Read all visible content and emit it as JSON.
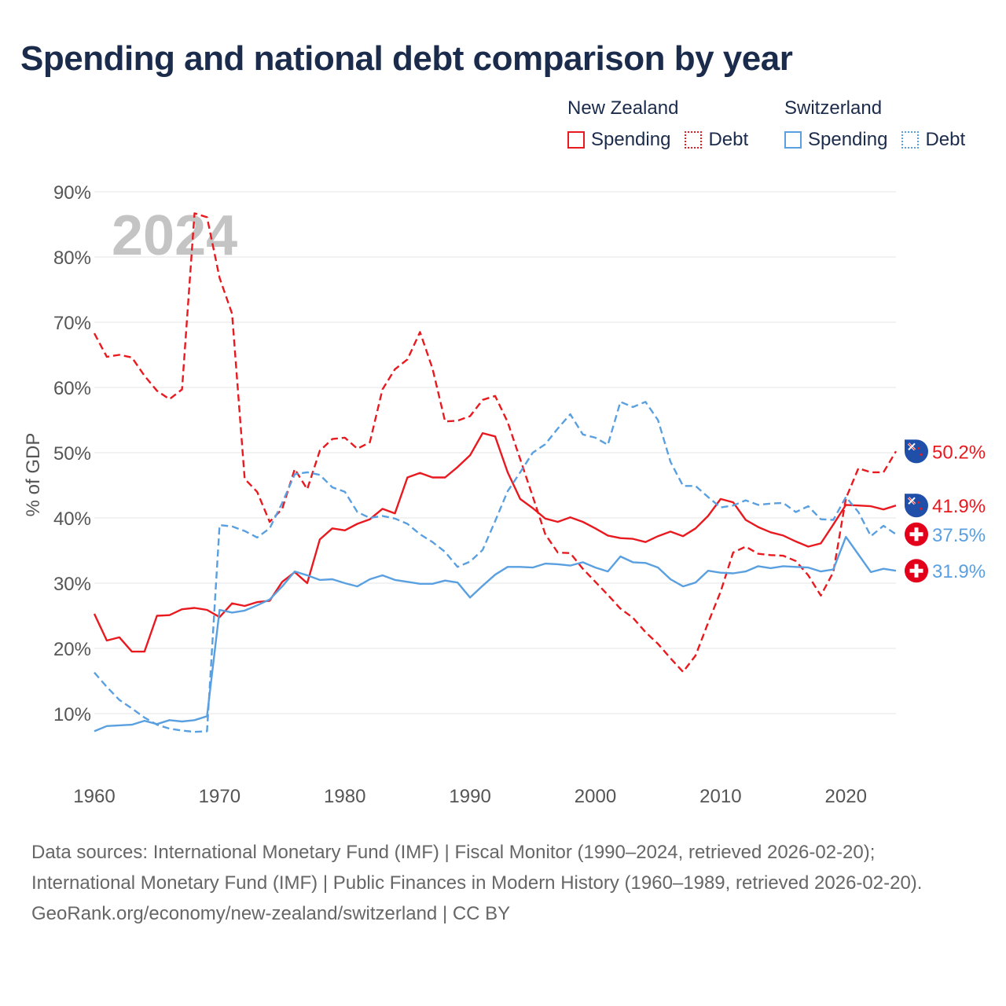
{
  "title": "Spending and national debt comparison by year",
  "legend": {
    "groups": [
      {
        "country": "New Zealand",
        "color": "#e8191f",
        "items": [
          {
            "label": "Spending",
            "style": "solid"
          },
          {
            "label": "Debt",
            "style": "dotted"
          }
        ]
      },
      {
        "country": "Switzerland",
        "color": "#5aa0e0",
        "items": [
          {
            "label": "Spending",
            "style": "solid"
          },
          {
            "label": "Debt",
            "style": "dotted"
          }
        ]
      }
    ]
  },
  "footer": {
    "sources": "Data sources: International Monetary Fund (IMF) | Fiscal Monitor (1990–2024, retrieved 2026-02-20); International Monetary Fund (IMF) | Public Finances in Modern History (1960–1989, retrieved 2026-02-20).",
    "credit": "GeoRank.org/economy/new-zealand/switzerland | CC BY"
  },
  "chart_data": {
    "type": "line",
    "year_watermark": "2024",
    "ylabel": "% of GDP",
    "xlim": [
      1960,
      2024
    ],
    "ylim": [
      0,
      90
    ],
    "x_ticks": [
      "1960",
      "1970",
      "1980",
      "1990",
      "2000",
      "2010",
      "2020"
    ],
    "y_ticks": [
      "10%",
      "20%",
      "30%",
      "40%",
      "50%",
      "60%",
      "70%",
      "80%",
      "90%"
    ],
    "x": [
      1960,
      1961,
      1962,
      1963,
      1964,
      1965,
      1966,
      1967,
      1968,
      1969,
      1970,
      1971,
      1972,
      1973,
      1974,
      1975,
      1976,
      1977,
      1978,
      1979,
      1980,
      1981,
      1982,
      1983,
      1984,
      1985,
      1986,
      1987,
      1988,
      1989,
      1990,
      1991,
      1992,
      1993,
      1994,
      1995,
      1996,
      1997,
      1998,
      1999,
      2000,
      2001,
      2002,
      2003,
      2004,
      2005,
      2006,
      2007,
      2008,
      2009,
      2010,
      2011,
      2012,
      2013,
      2014,
      2015,
      2016,
      2017,
      2018,
      2019,
      2020,
      2021,
      2022,
      2023,
      2024
    ],
    "series": [
      {
        "name": "New Zealand Spending",
        "color": "#e8191f",
        "dash": "none",
        "end_label": "41.9%",
        "flag": "nz",
        "values": [
          25.3,
          21.2,
          21.7,
          19.5,
          19.5,
          25.0,
          25.1,
          26.0,
          26.2,
          25.9,
          24.8,
          26.9,
          26.5,
          27.1,
          27.3,
          30.2,
          31.7,
          30.0,
          36.7,
          38.4,
          38.1,
          39.1,
          39.8,
          41.4,
          40.7,
          46.2,
          46.9,
          46.2,
          46.2,
          47.8,
          49.6,
          53.0,
          52.5,
          47.0,
          42.9,
          41.5,
          39.9,
          39.4,
          40.1,
          39.4,
          38.4,
          37.3,
          36.9,
          36.8,
          36.3,
          37.2,
          37.9,
          37.2,
          38.4,
          40.3,
          42.9,
          42.4,
          39.7,
          38.6,
          37.8,
          37.3,
          36.4,
          35.6,
          36.1,
          39.0,
          42.0,
          41.9,
          41.8,
          41.3,
          41.9
        ]
      },
      {
        "name": "New Zealand Debt",
        "color": "#e8191f",
        "dash": "9,5",
        "end_label": "50.2%",
        "flag": "nz",
        "values": [
          68.3,
          64.7,
          65.0,
          64.6,
          61.8,
          59.5,
          58.2,
          59.7,
          86.7,
          86.1,
          76.8,
          71.3,
          46.0,
          44.0,
          39.4,
          41.4,
          47.5,
          44.4,
          50.3,
          52.1,
          52.3,
          50.6,
          51.6,
          59.7,
          62.8,
          64.3,
          68.5,
          62.9,
          54.8,
          54.9,
          55.6,
          58.1,
          58.7,
          54.7,
          49.0,
          43.3,
          37.5,
          34.7,
          34.6,
          32.2,
          30.2,
          28.2,
          26.1,
          24.7,
          22.5,
          20.7,
          18.5,
          16.4,
          18.9,
          23.9,
          28.7,
          34.7,
          35.6,
          34.5,
          34.3,
          34.2,
          33.4,
          31.2,
          28.1,
          31.7,
          43.0,
          47.6,
          47.0,
          47.0,
          50.2
        ]
      },
      {
        "name": "Switzerland Spending",
        "color": "#5aa0e0",
        "dash": "none",
        "end_label": "31.9%",
        "flag": "ch",
        "values": [
          7.3,
          8.1,
          8.2,
          8.3,
          8.9,
          8.4,
          9.0,
          8.8,
          9.0,
          9.6,
          25.9,
          25.5,
          25.8,
          26.6,
          27.5,
          29.5,
          31.8,
          31.2,
          30.5,
          30.6,
          30.0,
          29.5,
          30.6,
          31.2,
          30.5,
          30.2,
          29.9,
          29.9,
          30.4,
          30.1,
          27.8,
          29.6,
          31.3,
          32.5,
          32.5,
          32.4,
          33.0,
          32.9,
          32.7,
          33.2,
          32.4,
          31.8,
          34.1,
          33.2,
          33.1,
          32.4,
          30.6,
          29.5,
          30.1,
          31.9,
          31.6,
          31.5,
          31.8,
          32.6,
          32.3,
          32.6,
          32.5,
          32.4,
          31.8,
          32.1,
          37.1,
          34.4,
          31.7,
          32.2,
          31.9
        ]
      },
      {
        "name": "Switzerland Debt",
        "color": "#5aa0e0",
        "dash": "9,5",
        "end_label": "37.5%",
        "flag": "ch",
        "values": [
          16.3,
          14.1,
          12.1,
          10.8,
          9.4,
          8.3,
          7.7,
          7.4,
          7.2,
          7.3,
          38.9,
          38.7,
          38.0,
          37.0,
          38.4,
          42.3,
          46.7,
          47.0,
          46.6,
          44.7,
          44.0,
          40.9,
          40.0,
          40.3,
          39.9,
          39.1,
          37.5,
          36.3,
          34.8,
          32.5,
          33.3,
          35.1,
          39.5,
          44.1,
          47.0,
          50.0,
          51.3,
          53.7,
          55.9,
          52.8,
          52.3,
          51.2,
          57.8,
          57.0,
          57.8,
          55.0,
          48.6,
          44.9,
          44.9,
          43.2,
          41.6,
          41.9,
          42.7,
          42.0,
          42.2,
          42.3,
          40.9,
          41.8,
          39.8,
          39.7,
          43.2,
          40.9,
          37.2,
          38.8,
          37.5
        ]
      }
    ]
  }
}
